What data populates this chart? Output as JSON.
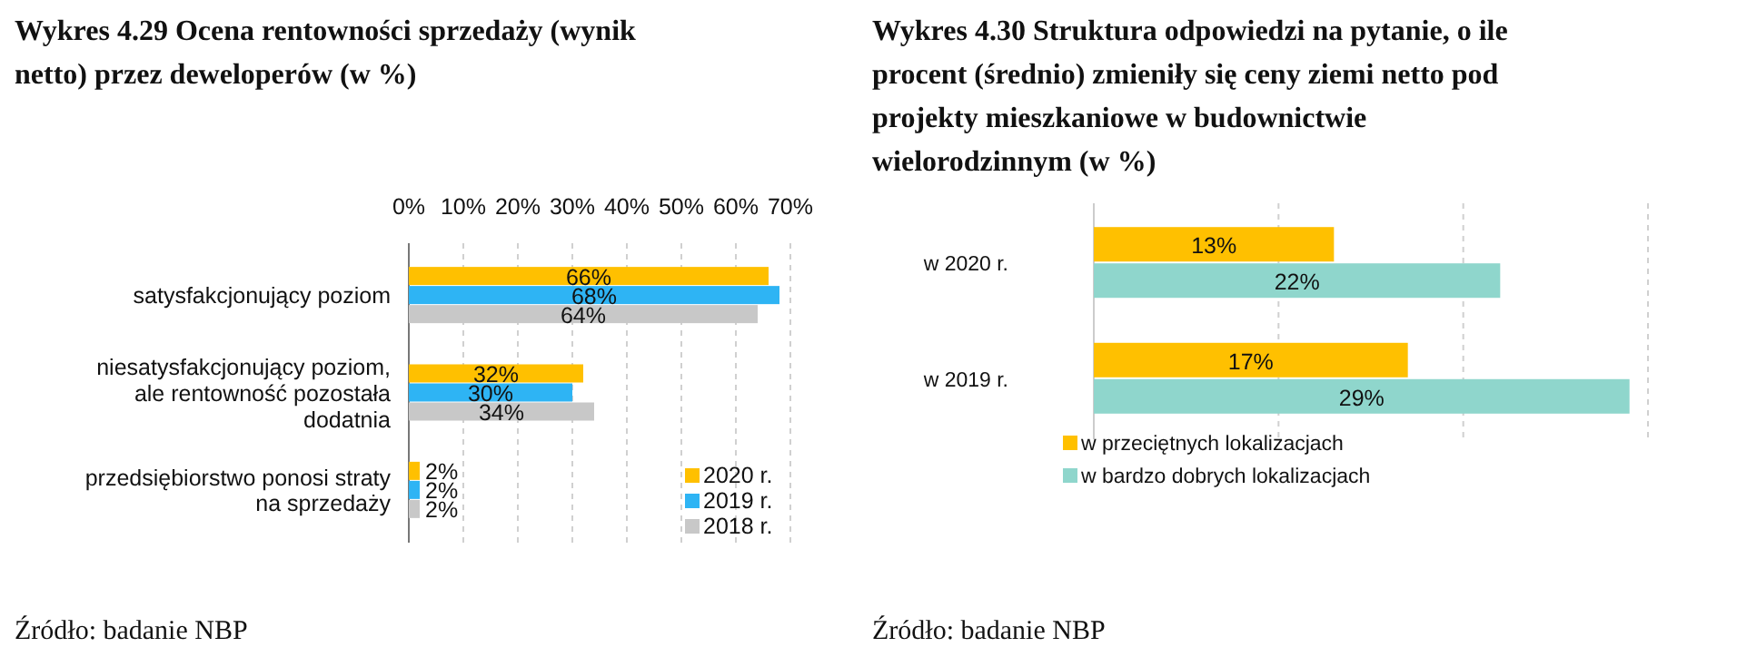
{
  "chart_data": [
    {
      "type": "bar",
      "orientation": "horizontal",
      "title": "Wykres 4.29 Ocena rentowności sprzedaży (wynik netto) przez deweloperów (w %)",
      "categories": [
        "satysfakcjonujący poziom",
        "niesatysfakcjonujący poziom, ale rentowność pozostała dodatnia",
        "przedsiębiorstwo ponosi straty na sprzedaży"
      ],
      "series": [
        {
          "name": "2020 r.",
          "color": "#ffc000",
          "values": [
            66,
            32,
            2
          ],
          "value_labels": [
            "66%",
            "32%",
            "2%"
          ]
        },
        {
          "name": "2019 r.",
          "color": "#2eb4f4",
          "values": [
            68,
            30,
            2
          ],
          "value_labels": [
            "68%",
            "30%",
            "2%"
          ]
        },
        {
          "name": "2018 r.",
          "color": "#c8c8c8",
          "values": [
            64,
            34,
            2
          ],
          "value_labels": [
            "64%",
            "34%",
            "2%"
          ]
        }
      ],
      "xlim": [
        0,
        70
      ],
      "xticks": [
        {
          "value": 0,
          "label": "0%"
        },
        {
          "value": 10,
          "label": "10%"
        },
        {
          "value": 20,
          "label": "20%"
        },
        {
          "value": 30,
          "label": "30%"
        },
        {
          "value": 40,
          "label": "40%"
        },
        {
          "value": 50,
          "label": "50%"
        },
        {
          "value": 60,
          "label": "60%"
        },
        {
          "value": 70,
          "label": "70%"
        }
      ],
      "grid": "x",
      "legend": "bottom right",
      "annotations": [
        "Źródło: badanie NBP"
      ]
    },
    {
      "type": "bar",
      "orientation": "horizontal",
      "title": "Wykres 4.30 Struktura odpowiedzi na pytanie, o ile procent (średnio) zmieniły się ceny ziemi netto pod projekty mieszkaniowe w budownictwie wielorodzinnym (w %)",
      "categories": [
        "w 2020 r.",
        "w 2019 r."
      ],
      "series": [
        {
          "name": "w przeciętnych lokalizacjach",
          "color": "#ffc000",
          "values": [
            13,
            17
          ],
          "value_labels": [
            "13%",
            "17%"
          ]
        },
        {
          "name": "w bardzo dobrych lokalizacjach",
          "color": "#8fd6cc",
          "values": [
            22,
            29
          ],
          "value_labels": [
            "22%",
            "29%"
          ]
        }
      ],
      "xlim": [
        0,
        30
      ],
      "xticks": [
        {
          "value": 0,
          "label": null
        },
        {
          "value": 10,
          "label": null
        },
        {
          "value": 20,
          "label": null
        },
        {
          "value": 30,
          "label": null
        }
      ],
      "tick_labels": "y",
      "grid": "x",
      "legend": "bottom",
      "annotations": [
        "Źródło: badanie NBP"
      ]
    }
  ]
}
